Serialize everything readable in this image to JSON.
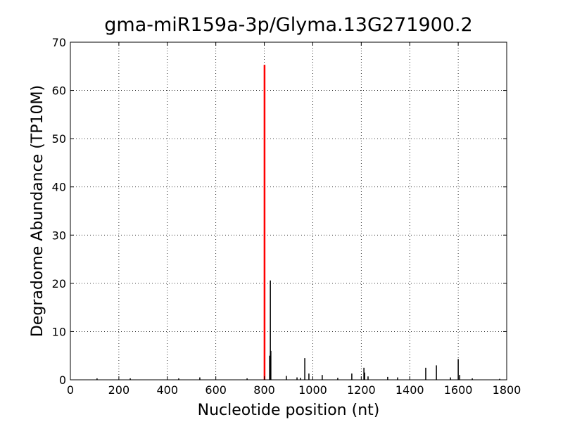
{
  "chart_data": {
    "type": "stem",
    "title": "gma-miR159a-3p/Glyma.13G271900.2",
    "x_label": "Nucleotide position (nt)",
    "y_label": "Degradome Abundance (TP10M)",
    "x": [
      110,
      247,
      447,
      534,
      729,
      822,
      825,
      827,
      891,
      935,
      949,
      967,
      984,
      1039,
      1103,
      1161,
      1211,
      1214,
      1228,
      1309,
      1350,
      1466,
      1510,
      1568,
      1600,
      1606,
      1658,
      1771
    ],
    "values": [
      0.3,
      0.3,
      0.3,
      0.5,
      0.3,
      5,
      20.6,
      6,
      0.8,
      0.5,
      0.4,
      4.5,
      1.3,
      1.0,
      0.4,
      1.3,
      2.5,
      1.5,
      0.7,
      0.6,
      0.5,
      2.5,
      3.0,
      0.5,
      4.3,
      1.0,
      0.3,
      0.2
    ],
    "color": "#000000",
    "highlight": {
      "x": 801,
      "value": 65.3,
      "color": "#ff0000"
    },
    "xlim": [
      0,
      1800
    ],
    "xticks": [
      0,
      200,
      400,
      600,
      800,
      1000,
      1200,
      1400,
      1600,
      1800
    ],
    "ylim": [
      0,
      70
    ],
    "yticks": [
      0,
      10,
      20,
      30,
      40,
      50,
      60,
      70
    ],
    "grid": true
  }
}
